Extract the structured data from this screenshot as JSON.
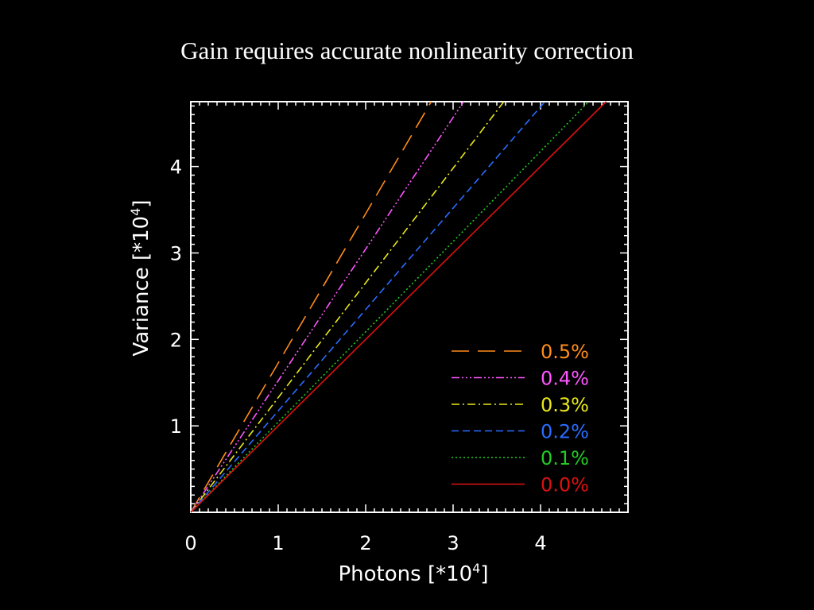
{
  "slide": {
    "title": "Gain requires accurate nonlinearity correction"
  },
  "chart_data": {
    "type": "line",
    "title": "",
    "xlabel": "Photons [*10",
    "xlabel_exponent": "4",
    "xlabel_suffix": "]",
    "ylabel": "Variance [*10",
    "ylabel_exponent": "4",
    "ylabel_suffix": "]",
    "xlim": [
      0,
      5
    ],
    "ylim": [
      0,
      4.75
    ],
    "xticks": [
      "0",
      "1",
      "2",
      "3",
      "4"
    ],
    "yticks": [
      "1",
      "2",
      "3",
      "4"
    ],
    "grid": false,
    "legend_position": "bottom-right",
    "background": "#000000",
    "axis_color": "#ffffff",
    "series": [
      {
        "name": "0.5%",
        "color": "#ff8c1a",
        "dash": "22 11",
        "x": [
          0,
          2.75
        ],
        "y": [
          0,
          4.75
        ]
      },
      {
        "name": "0.4%",
        "color": "#ff55ff",
        "dash": "10 3 2 3 2 3 2 3",
        "x": [
          0,
          3.12
        ],
        "y": [
          0,
          4.75
        ]
      },
      {
        "name": "0.3%",
        "color": "#e8e81a",
        "dash": "10 4 2 4",
        "x": [
          0,
          3.58
        ],
        "y": [
          0,
          4.75
        ]
      },
      {
        "name": "0.2%",
        "color": "#2a6cff",
        "dash": "9 5",
        "x": [
          0,
          4.05
        ],
        "y": [
          0,
          4.75
        ]
      },
      {
        "name": "0.1%",
        "color": "#22cc22",
        "dash": "2 3",
        "x": [
          0,
          4.55
        ],
        "y": [
          0,
          4.75
        ]
      },
      {
        "name": "0.0%",
        "color": "#dd1111",
        "dash": "",
        "x": [
          0,
          4.75
        ],
        "y": [
          0,
          4.75
        ]
      }
    ]
  }
}
